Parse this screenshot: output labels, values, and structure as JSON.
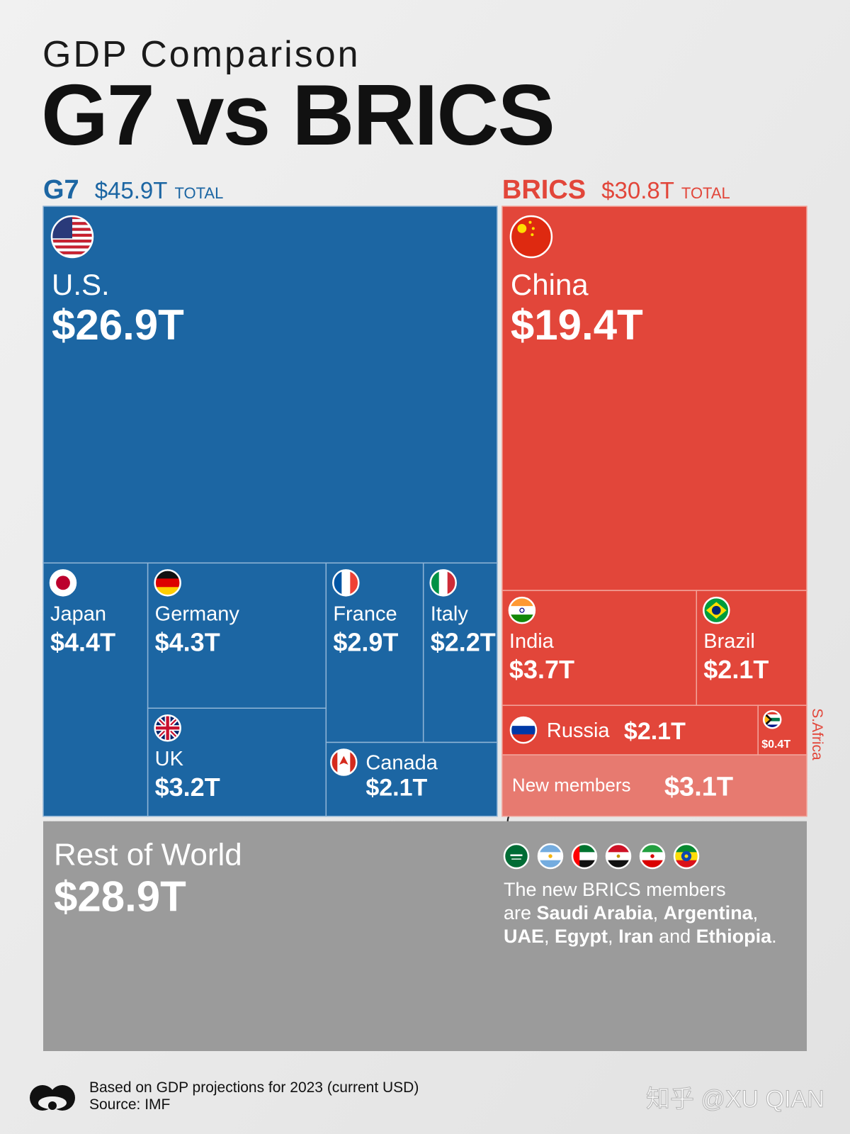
{
  "chart_data": {
    "type": "treemap",
    "subtitle": "GDP Comparison",
    "title": "G7 vs BRICS",
    "total_text": "TOTAL",
    "groups": [
      {
        "name": "G7",
        "total": 45.9,
        "total_label": "$45.9T",
        "color": "#1c66a3",
        "categories": [
          "U.S.",
          "Japan",
          "Germany",
          "UK",
          "France",
          "Italy",
          "Canada"
        ],
        "values": [
          26.9,
          4.4,
          4.3,
          3.2,
          2.9,
          2.2,
          2.1
        ],
        "value_labels": [
          "$26.9T",
          "$4.4T",
          "$4.3T",
          "$3.2T",
          "$2.9T",
          "$2.2T",
          "$2.1T"
        ],
        "colors": [
          "#1c66a3",
          "#1c66a3",
          "#1c66a3",
          "#1c66a3",
          "#1c66a3",
          "#1c66a3",
          "#1c66a3"
        ]
      },
      {
        "name": "BRICS",
        "total": 30.8,
        "total_label": "$30.8T",
        "color": "#e2463a",
        "categories": [
          "China",
          "India",
          "Brazil",
          "Russia",
          "S.Africa",
          "New members"
        ],
        "values": [
          19.4,
          3.7,
          2.1,
          2.1,
          0.4,
          3.1
        ],
        "value_labels": [
          "$19.4T",
          "$3.7T",
          "$2.1T",
          "$2.1T",
          "$0.4T",
          "$3.1T"
        ],
        "colors": [
          "#e2463a",
          "#e2463a",
          "#e2463a",
          "#e2463a",
          "#e2463a",
          "#e77a70"
        ]
      }
    ],
    "rest": {
      "name": "Rest of World",
      "value": 28.9,
      "value_label": "$28.9T",
      "color": "#9b9b9b"
    },
    "note": [
      [
        "The new BRICS members"
      ],
      [
        "are ",
        {
          "text": "Saudi Arabia",
          "bold": true
        },
        ", ",
        {
          "text": "Argentina",
          "bold": true
        },
        ","
      ],
      [
        {
          "text": "UAE",
          "bold": true
        },
        ", ",
        {
          "text": "Egypt",
          "bold": true
        },
        ", ",
        {
          "text": "Iran",
          "bold": true
        },
        " and ",
        {
          "text": "Ethiopia",
          "bold": true
        },
        "."
      ]
    ],
    "footnote": "Based on GDP projections for 2023 (current USD)",
    "source": "Source: IMF",
    "watermark": "知乎 @XU QIAN"
  }
}
